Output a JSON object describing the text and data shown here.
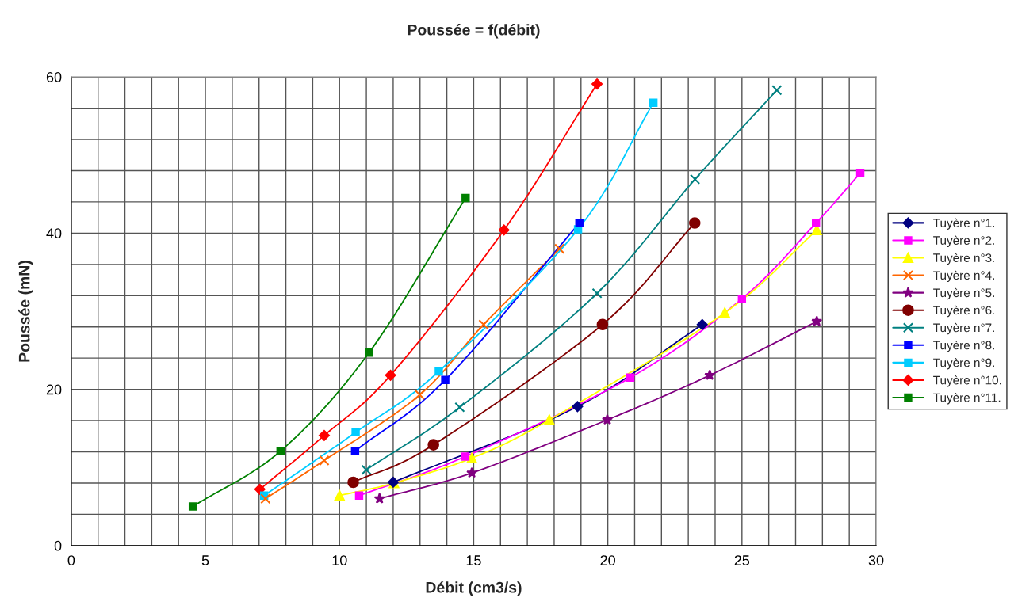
{
  "chart_data": {
    "type": "line",
    "title": "Poussée = f(débit)",
    "xlabel": "Débit (cm3/s)",
    "ylabel": "Poussée (mN)",
    "xlim": [
      0,
      30
    ],
    "ylim": [
      0,
      60
    ],
    "xticks": [
      0,
      {
        "value": 1,
        "label": null
      },
      {
        "value": 2,
        "label": null
      },
      {
        "value": 3,
        "label": null
      },
      {
        "value": 4,
        "label": null
      },
      5,
      {
        "value": 6,
        "label": null
      },
      {
        "value": 7,
        "label": null
      },
      {
        "value": 8,
        "label": null
      },
      {
        "value": 9,
        "label": null
      },
      10,
      {
        "value": 11,
        "label": null
      },
      {
        "value": 12,
        "label": null
      },
      {
        "value": 13,
        "label": null
      },
      {
        "value": 14,
        "label": null
      },
      15,
      {
        "value": 16,
        "label": null
      },
      {
        "value": 17,
        "label": null
      },
      {
        "value": 18,
        "label": null
      },
      {
        "value": 19,
        "label": null
      },
      20,
      {
        "value": 21,
        "label": null
      },
      {
        "value": 22,
        "label": null
      },
      {
        "value": 23,
        "label": null
      },
      {
        "value": 24,
        "label": null
      },
      25,
      {
        "value": 26,
        "label": null
      },
      {
        "value": 27,
        "label": null
      },
      {
        "value": 28,
        "label": null
      },
      {
        "value": 29,
        "label": null
      },
      30
    ],
    "yticks": [
      0,
      {
        "value": 4,
        "label": null
      },
      {
        "value": 8,
        "label": null
      },
      {
        "value": 12,
        "label": null
      },
      {
        "value": 16,
        "label": null
      },
      20,
      {
        "value": 24,
        "label": null
      },
      {
        "value": 28,
        "label": null
      },
      {
        "value": 32,
        "label": null
      },
      {
        "value": 36,
        "label": null
      },
      40,
      {
        "value": 44,
        "label": null
      },
      {
        "value": 48,
        "label": null
      },
      {
        "value": 52,
        "label": null
      },
      {
        "value": 56,
        "label": null
      },
      60
    ],
    "grid": true,
    "legend": "right",
    "line_style": "solid",
    "series": [
      {
        "name": "Tuyère n°1.",
        "color": "#000080",
        "marker": "diamond",
        "x": [
          12.0,
          18.87,
          23.52
        ],
        "values": [
          8.1,
          17.8,
          28.3
        ]
      },
      {
        "name": "Tuyère n°2.",
        "color": "#ff00ff",
        "marker": "square",
        "x": [
          10.73,
          14.69,
          20.84,
          25.0,
          27.76,
          29.41
        ],
        "values": [
          6.4,
          11.4,
          21.5,
          31.6,
          41.3,
          47.7
        ]
      },
      {
        "name": "Tuyère n°3.",
        "color": "#ffff00",
        "marker": "triangle",
        "x": [
          10.0,
          12.03,
          14.93,
          17.82,
          24.36,
          27.79
        ],
        "values": [
          6.4,
          8.0,
          11.2,
          16.1,
          29.8,
          40.4
        ]
      },
      {
        "name": "Tuyère n°4.",
        "color": "#ff6600",
        "marker": "cross",
        "x": [
          7.24,
          9.43,
          12.99,
          15.37,
          18.2
        ],
        "values": [
          6.0,
          10.9,
          19.3,
          28.3,
          38.0
        ]
      },
      {
        "name": "Tuyère n°5.",
        "color": "#800080",
        "marker": "star",
        "x": [
          11.49,
          14.93,
          19.98,
          23.8,
          27.79
        ],
        "values": [
          6.0,
          9.3,
          16.1,
          21.8,
          28.7
        ]
      },
      {
        "name": "Tuyère n°6.",
        "color": "#800000",
        "marker": "circle",
        "x": [
          10.51,
          13.5,
          19.8,
          23.24
        ],
        "values": [
          8.1,
          12.9,
          28.3,
          41.3
        ]
      },
      {
        "name": "Tuyère n°7.",
        "color": "#008080",
        "marker": "cross",
        "x": [
          11.0,
          14.48,
          19.6,
          23.25,
          26.3
        ],
        "values": [
          9.7,
          17.7,
          32.3,
          46.9,
          58.3
        ]
      },
      {
        "name": "Tuyère n°8.",
        "color": "#0000ff",
        "marker": "square",
        "x": [
          10.58,
          13.94,
          18.94
        ],
        "values": [
          12.1,
          21.2,
          41.3
        ]
      },
      {
        "name": "Tuyère n°9.",
        "color": "#00ccff",
        "marker": "square",
        "x": [
          7.19,
          10.6,
          13.7,
          18.89,
          21.7
        ],
        "values": [
          6.4,
          14.5,
          22.3,
          40.5,
          56.7
        ]
      },
      {
        "name": "Tuyère n°10.",
        "color": "#ff0000",
        "marker": "diamond",
        "x": [
          7.03,
          9.43,
          11.9,
          16.13,
          19.6
        ],
        "values": [
          7.2,
          14.1,
          21.8,
          40.4,
          59.1
        ]
      },
      {
        "name": "Tuyère n°11.",
        "color": "#008000",
        "marker": "square",
        "x": [
          4.53,
          7.8,
          11.1,
          14.7
        ],
        "values": [
          5.0,
          12.1,
          24.7,
          44.5
        ]
      }
    ]
  }
}
